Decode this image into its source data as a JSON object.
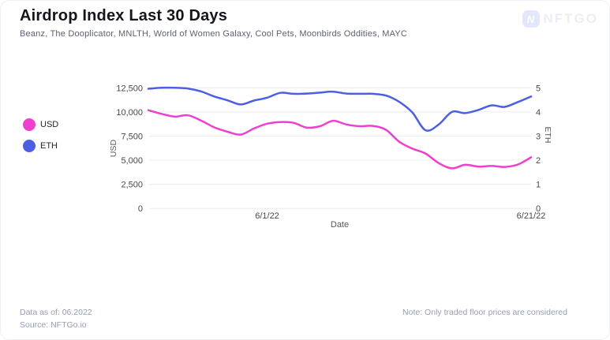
{
  "header": {
    "title": "Airdrop Index Last 30 Days",
    "subtitle": "Beanz, The Dooplicator, MNLTH, World of Women Galaxy, Cool Pets, Moonbirds Oddities, MAYC",
    "logo_text": "NFTGO",
    "logo_letter": "N"
  },
  "legend": [
    {
      "label": "USD",
      "color": "#ee3fd0"
    },
    {
      "label": "ETH",
      "color": "#4c5fe4"
    }
  ],
  "footer": {
    "data_as_of": "Data as of: 06.2022",
    "source": "Source: NFTGo.io",
    "note": "Note: Only traded floor prices are considered"
  },
  "colors": {
    "usd_line": "#ee3fd0",
    "eth_line": "#4c5fe4",
    "gridline": "#ececf0",
    "tick_text": "#46474f",
    "axis_title_text": "#55565e"
  },
  "chart_data": {
    "type": "line",
    "title": "Airdrop Index Last 30 Days",
    "xlabel": "Date",
    "ylabel_left": "USD",
    "ylabel_right": "ETH",
    "grid": "horizontal",
    "legend_position": "left",
    "ylim_left": [
      0,
      12500
    ],
    "ylim_right": [
      0,
      5
    ],
    "y_left_ticks": [
      0,
      2500,
      5000,
      7500,
      10000,
      12500
    ],
    "y_right_ticks": [
      0,
      1,
      2,
      3,
      4,
      5
    ],
    "x_tick_labels": [
      {
        "label": "6/1/22",
        "index": 9
      },
      {
        "label": "6/21/22",
        "index": 29
      }
    ],
    "x": [
      "5/23/22",
      "5/24/22",
      "5/25/22",
      "5/26/22",
      "5/27/22",
      "5/28/22",
      "5/29/22",
      "5/30/22",
      "5/31/22",
      "6/1/22",
      "6/2/22",
      "6/3/22",
      "6/4/22",
      "6/5/22",
      "6/6/22",
      "6/7/22",
      "6/8/22",
      "6/9/22",
      "6/10/22",
      "6/11/22",
      "6/12/22",
      "6/13/22",
      "6/14/22",
      "6/15/22",
      "6/16/22",
      "6/17/22",
      "6/18/22",
      "6/19/22",
      "6/20/22",
      "6/21/22"
    ],
    "series": [
      {
        "name": "USD",
        "axis": "left",
        "color": "#ee3fd0",
        "values": [
          10180,
          9800,
          9520,
          9650,
          9100,
          8400,
          7950,
          7650,
          8280,
          8780,
          8950,
          8870,
          8380,
          8520,
          9080,
          8700,
          8520,
          8550,
          8150,
          6920,
          6200,
          5690,
          4700,
          4150,
          4520,
          4330,
          4400,
          4300,
          4550,
          5300
        ]
      },
      {
        "name": "ETH",
        "axis": "right",
        "color": "#4c5fe4",
        "values": [
          4.96,
          5.0,
          5.0,
          4.97,
          4.85,
          4.64,
          4.48,
          4.31,
          4.47,
          4.59,
          4.79,
          4.75,
          4.76,
          4.8,
          4.84,
          4.76,
          4.75,
          4.75,
          4.68,
          4.42,
          3.98,
          3.24,
          3.48,
          4.0,
          3.95,
          4.08,
          4.27,
          4.21,
          4.41,
          4.64
        ]
      }
    ]
  }
}
